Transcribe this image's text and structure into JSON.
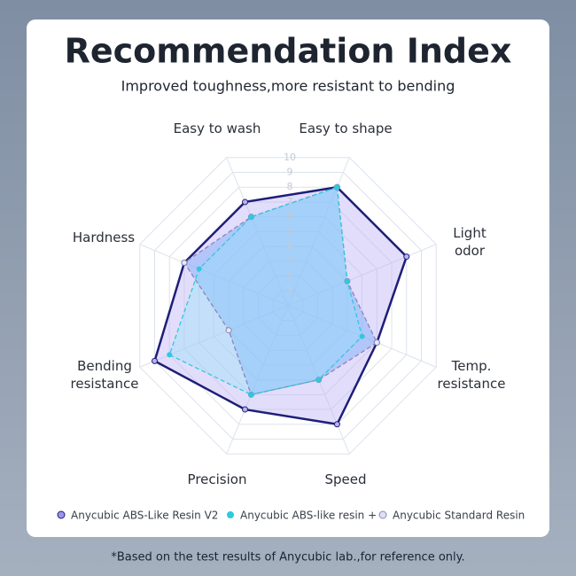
{
  "chart_data": {
    "type": "radar",
    "title": "Recommendation Index",
    "subtitle": "Improved toughness,more resistant to bending",
    "footnote": "*Based on the test results of Anycubic lab.,for reference only.",
    "categories": [
      "Easy to shape",
      "Light\nodor",
      "Temp.\nresistance",
      "Speed",
      "Precision",
      "Bending\nresistance",
      "Hardness",
      "Easy to wash"
    ],
    "ylim": [
      0,
      10
    ],
    "yticks": [
      1,
      2,
      3,
      4,
      5,
      6,
      7,
      8,
      9,
      10
    ],
    "series": [
      {
        "name": "Anycubic ABS-Like Resin V2",
        "color": "#1e1e78",
        "values": [
          8,
          8,
          6,
          8,
          7,
          9,
          7,
          7
        ]
      },
      {
        "name": "Anycubic ABS-like resin +",
        "color": "#2ec9e0",
        "values": [
          8,
          4,
          5,
          5,
          6,
          8,
          6,
          6
        ]
      },
      {
        "name": "Anycubic Standard Resin",
        "color": "#8a86b8",
        "values": [
          8,
          4,
          6,
          5,
          6,
          4,
          7,
          6
        ]
      }
    ]
  }
}
